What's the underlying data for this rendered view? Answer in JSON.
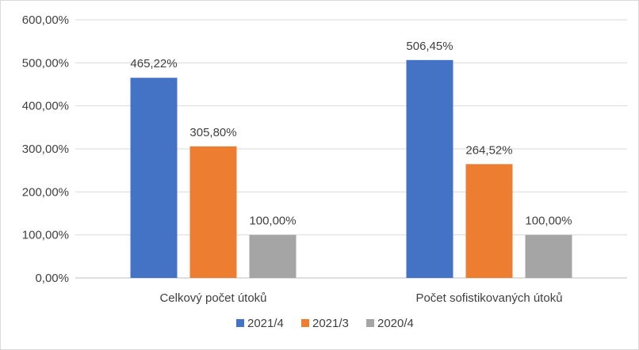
{
  "chart_data": {
    "type": "bar",
    "categories": [
      "Celkový počet útoků",
      "Počet sofistikovaných útoků"
    ],
    "series": [
      {
        "name": "2021/4",
        "color": "#4472c4",
        "values": [
          465.22,
          506.45
        ],
        "labels": [
          "465,22%",
          "506,45%"
        ]
      },
      {
        "name": "2021/3",
        "color": "#ed7d31",
        "values": [
          305.8,
          264.52
        ],
        "labels": [
          "305,80%",
          "264,52%"
        ]
      },
      {
        "name": "2020/4",
        "color": "#a5a5a5",
        "values": [
          100.0,
          100.0
        ],
        "labels": [
          "100,00%",
          "100,00%"
        ]
      }
    ],
    "ylim": [
      0,
      600
    ],
    "yticks": [
      0,
      100,
      200,
      300,
      400,
      500,
      600
    ],
    "ytick_labels": [
      "0,00%",
      "100,00%",
      "200,00%",
      "300,00%",
      "400,00%",
      "500,00%",
      "600,00%"
    ],
    "grid": true,
    "legend_position": "bottom",
    "title": "",
    "xlabel": "",
    "ylabel": ""
  }
}
